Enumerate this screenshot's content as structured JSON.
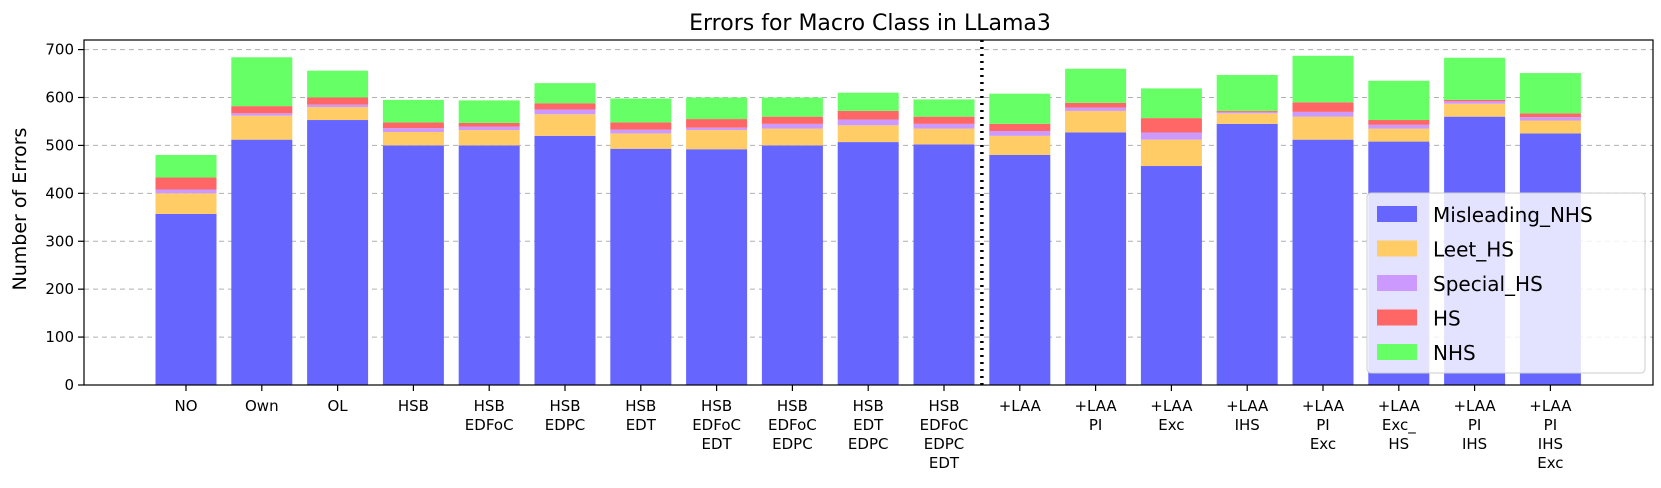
{
  "chart_data": {
    "type": "bar",
    "stacked": true,
    "title": "Errors for Macro Class in LLama3",
    "xlabel": "",
    "ylabel": "Number of Errors",
    "ylim": [
      0,
      720
    ],
    "yticks": [
      0,
      100,
      200,
      300,
      400,
      500,
      600,
      700
    ],
    "grid": true,
    "legend_position": "lower-right",
    "divider_after_category": "HSB\nEDFoC\nEDPC\nEDT",
    "categories": [
      "NO",
      "Own",
      "OL",
      "HSB",
      "HSB\nEDFoC",
      "HSB\nEDPC",
      "HSB\nEDT",
      "HSB\nEDFoC\nEDT",
      "HSB\nEDFoC\nEDPC",
      "HSB\nEDT\nEDPC",
      "HSB\nEDFoC\nEDPC\nEDT",
      "+LAA",
      "+LAA\nPI",
      "+LAA\nExc",
      "+LAA\nIHS",
      "+LAA\nPI\nExc",
      "+LAA\nExc_\nHS",
      "+LAA\nPI\nIHS",
      "+LAA\nPI\nIHS\nExc"
    ],
    "series": [
      {
        "name": "Misleading_NHS",
        "color": "#6666ff",
        "values": [
          357,
          512,
          553,
          500,
          500,
          520,
          493,
          492,
          500,
          507,
          502,
          480,
          527,
          457,
          545,
          512,
          508,
          560,
          525
        ]
      },
      {
        "name": "Leet_HS",
        "color": "#ffcc66",
        "values": [
          43,
          50,
          27,
          28,
          32,
          45,
          32,
          40,
          35,
          35,
          33,
          40,
          45,
          55,
          22,
          48,
          27,
          27,
          27
        ]
      },
      {
        "name": "Special_HS",
        "color": "#cc99ff",
        "values": [
          8,
          5,
          5,
          8,
          7,
          10,
          8,
          5,
          10,
          12,
          10,
          10,
          7,
          15,
          3,
          10,
          8,
          5,
          7
        ]
      },
      {
        "name": "HS",
        "color": "#ff6666",
        "values": [
          25,
          15,
          15,
          12,
          8,
          13,
          15,
          18,
          15,
          18,
          15,
          15,
          10,
          30,
          2,
          20,
          10,
          3,
          8
        ]
      },
      {
        "name": "NHS",
        "color": "#66ff66",
        "values": [
          47,
          102,
          56,
          47,
          47,
          42,
          50,
          45,
          40,
          38,
          36,
          63,
          71,
          62,
          75,
          97,
          82,
          88,
          84
        ]
      }
    ]
  }
}
